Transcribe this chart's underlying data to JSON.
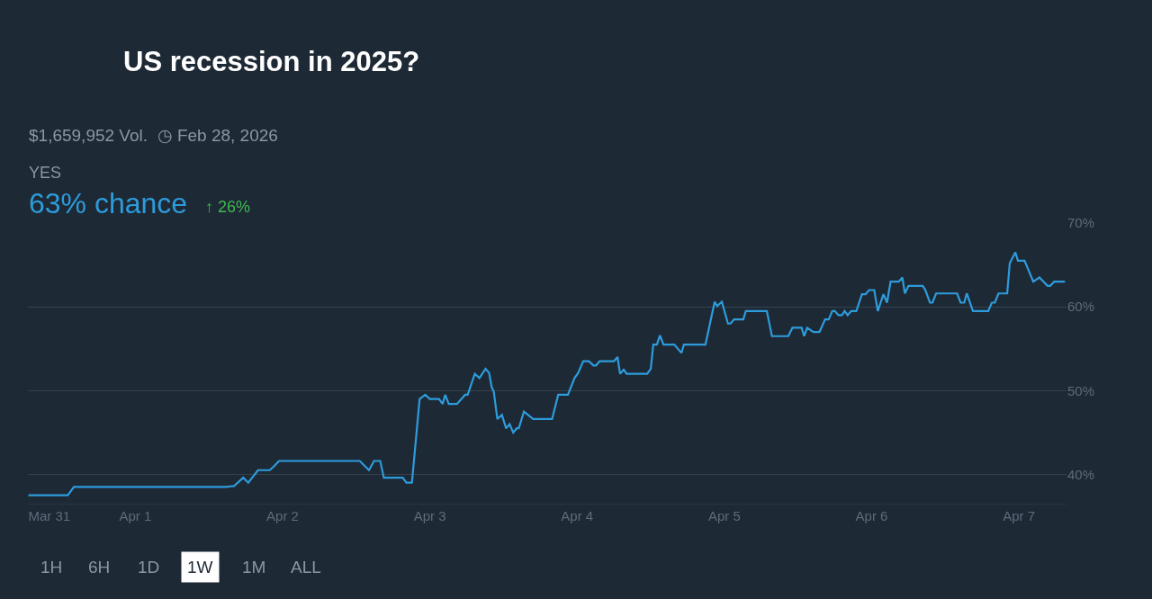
{
  "chart_data": {
    "type": "line",
    "title": "US recession in 2025?",
    "subtitle": "$1,659,952 Vol.  ◷ Feb 28, 2026",
    "annotations": [
      "YES",
      "63% chance",
      "↑ 26%",
      "1H",
      "6H",
      "1D",
      "1W",
      "1M",
      "ALL"
    ],
    "series": [
      {
        "color": "#2d9cdb",
        "x": [
          "--03-31T06:35",
          "--03-31T13:00",
          "--03-31T14:00",
          "--04-01T14:40",
          "--04-01T16:05",
          "--04-01T17:35",
          "--04-01T18:25",
          "--04-01T20:00",
          "--04-01T21:55",
          "--04-01T22:40",
          "--04-01T23:25",
          "--04-02T12:35",
          "--04-02T14:05",
          "--04-02T14:55",
          "--04-02T15:55",
          "--04-02T16:30",
          "--04-02T19:35",
          "--04-02T20:10",
          "--04-02T21:05",
          "--04-02T22:20",
          "--04-02T23:15",
          "--04-03T00:00",
          "--04-03T01:30",
          "--04-03T02:05",
          "--04-03T02:30",
          "--04-03T03:05",
          "--04-03T04:25",
          "--04-03T05:45",
          "--04-03T06:10",
          "--04-03T07:20",
          "--04-03T08:05",
          "--04-03T09:05",
          "--04-03T09:40",
          "--04-03T10:05",
          "--04-03T10:25",
          "--04-03T11:00",
          "--04-03T11:45",
          "--04-03T12:25",
          "--04-03T13:00",
          "--04-03T13:35",
          "--04-03T14:10",
          "--04-03T14:30",
          "--04-03T15:20",
          "--04-03T16:50",
          "--04-03T19:55",
          "--04-03T20:55",
          "--04-03T22:30",
          "--04-03T23:35",
          "--04-04T00:10",
          "--04-04T01:00",
          "--04-04T01:55",
          "--04-04T02:40",
          "--04-04T03:05",
          "--04-04T03:40",
          "--04-04T06:00",
          "--04-04T06:35",
          "--04-04T07:00",
          "--04-04T07:35",
          "--04-04T08:05",
          "--04-04T11:25",
          "--04-04T12:00",
          "--04-04T12:25",
          "--04-04T13:00",
          "--04-04T13:30",
          "--04-04T14:05",
          "--04-04T15:50",
          "--04-04T17:00",
          "--04-04T17:25",
          "--04-04T20:55",
          "--04-04T22:25",
          "--04-04T22:50",
          "--04-04T23:35",
          "--04-05T00:35",
          "--04-05T01:00",
          "--04-05T01:35",
          "--04-05T03:05",
          "--04-05T03:30",
          "--04-05T06:55",
          "--04-05T07:45",
          "--04-05T10:25",
          "--04-05T11:05",
          "--04-05T12:35",
          "--04-05T13:00",
          "--04-05T13:30",
          "--04-05T14:30",
          "--04-05T15:30",
          "--04-05T16:25",
          "--04-05T17:00",
          "--04-05T17:35",
          "--04-05T18:00",
          "--04-05T18:35",
          "--04-05T19:10",
          "--04-05T19:35",
          "--04-05T20:05",
          "--04-05T20:40",
          "--04-05T21:30",
          "--04-05T22:25",
          "--04-05T23:00",
          "--04-05T23:35",
          "--04-06T00:25",
          "--04-06T01:00",
          "--04-06T01:55",
          "--04-06T02:30",
          "--04-06T03:05",
          "--04-06T04:25",
          "--04-06T05:00",
          "--04-06T05:25",
          "--04-06T06:00",
          "--04-06T08:20",
          "--04-06T08:45",
          "--04-06T09:30",
          "--04-06T09:55",
          "--04-06T10:30",
          "--04-06T13:55",
          "--04-06T14:30",
          "--04-06T15:05",
          "--04-06T15:30",
          "--04-06T16:30",
          "--04-06T19:00",
          "--04-06T19:35",
          "--04-06T20:05",
          "--04-06T20:40",
          "--04-06T22:05",
          "--04-06T22:30",
          "--04-06T23:25",
          "--04-06T23:50",
          "--04-07T00:55",
          "--04-07T02:20",
          "--04-07T03:20",
          "--04-07T04:40",
          "--04-07T05:05",
          "--04-07T05:45",
          "--04-07T07:30"
        ],
        "values": [
          37.5,
          37.5,
          38.5,
          38.5,
          38.6,
          39.6,
          39.0,
          40.5,
          40.5,
          41.0,
          41.6,
          41.6,
          40.5,
          41.6,
          41.6,
          39.6,
          39.6,
          39.0,
          39.0,
          49.0,
          49.5,
          49.0,
          49.0,
          48.4,
          49.5,
          48.4,
          48.4,
          49.5,
          49.5,
          52.0,
          51.5,
          52.6,
          52.1,
          50.4,
          49.9,
          46.6,
          47.1,
          45.5,
          46.0,
          45.0,
          45.5,
          45.5,
          47.5,
          46.6,
          46.6,
          49.5,
          49.5,
          51.5,
          52.1,
          53.5,
          53.5,
          53.0,
          53.0,
          53.5,
          53.5,
          54.0,
          52.0,
          52.5,
          52.0,
          52.0,
          52.6,
          55.5,
          55.5,
          56.6,
          55.5,
          55.5,
          54.5,
          55.5,
          55.5,
          60.6,
          60.1,
          60.6,
          58.0,
          58.0,
          58.5,
          58.5,
          59.5,
          59.5,
          56.5,
          56.5,
          57.5,
          57.5,
          56.5,
          57.5,
          57.0,
          57.0,
          58.5,
          58.5,
          59.5,
          59.5,
          59.0,
          59.0,
          59.5,
          59.0,
          59.5,
          59.5,
          61.5,
          61.5,
          62.0,
          62.0,
          59.5,
          61.5,
          60.5,
          63.0,
          63.0,
          63.5,
          61.6,
          62.5,
          62.5,
          62.0,
          60.5,
          60.5,
          61.6,
          61.6,
          60.5,
          60.5,
          61.6,
          59.5,
          59.5,
          60.5,
          60.5,
          61.6,
          61.6,
          65.2,
          66.5,
          65.5,
          65.5,
          63.0,
          63.5,
          62.5,
          62.5,
          63.0,
          63.0
        ]
      }
    ],
    "xlim": [
      "--03-31T06:30",
      "--04-07T07:45"
    ],
    "xticks": [
      {
        "value": "--03-31T10:00",
        "label": "Mar 31"
      },
      {
        "value": "--04-01",
        "label": "Apr 1"
      },
      {
        "value": "--04-02",
        "label": "Apr 2"
      },
      {
        "value": "--04-03",
        "label": "Apr 3"
      },
      {
        "value": "--04-04",
        "label": "Apr 4"
      },
      {
        "value": "--04-05",
        "label": "Apr 5"
      },
      {
        "value": "--04-06",
        "label": "Apr 6"
      },
      {
        "value": "--04-07",
        "label": "Apr 7"
      }
    ],
    "ylim": [
      36.5,
      70
    ],
    "yticks": [
      {
        "value": 40,
        "label": "40%"
      },
      {
        "value": 50,
        "label": "50%"
      },
      {
        "value": 60,
        "label": "60%"
      },
      {
        "value": 70,
        "label": "70%"
      }
    ],
    "grid": "y",
    "marker": "none",
    "line_style": "solid"
  }
}
